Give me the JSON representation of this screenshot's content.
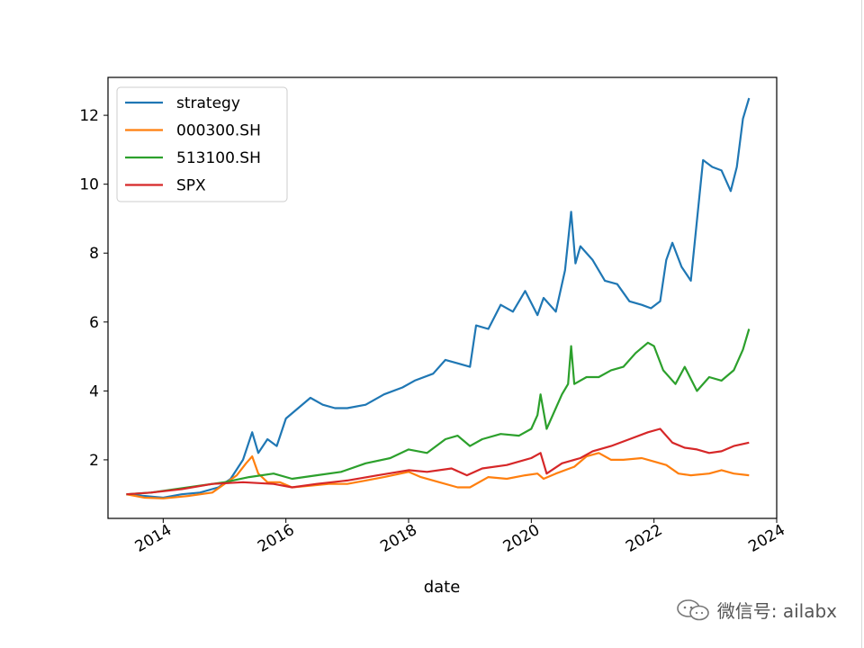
{
  "chart_data": {
    "type": "line",
    "title": "",
    "xlabel": "date",
    "ylabel": "",
    "xlim": [
      2013.1,
      2024.0
    ],
    "ylim": [
      0.3,
      13.1
    ],
    "x_ticks": [
      2014,
      2016,
      2018,
      2020,
      2022,
      2024
    ],
    "x_tick_labels": [
      "2014",
      "2016",
      "2018",
      "2020",
      "2022",
      "2024"
    ],
    "y_ticks": [
      2,
      4,
      6,
      8,
      10,
      12
    ],
    "y_tick_labels": [
      "2",
      "4",
      "6",
      "8",
      "10",
      "12"
    ],
    "grid": false,
    "legend_position": "top-left",
    "series": [
      {
        "name": "strategy",
        "color": "#1f77b4",
        "x": [
          2013.4,
          2013.7,
          2014.0,
          2014.3,
          2014.6,
          2014.9,
          2015.1,
          2015.3,
          2015.45,
          2015.55,
          2015.7,
          2015.85,
          2016.0,
          2016.2,
          2016.4,
          2016.6,
          2016.8,
          2017.0,
          2017.3,
          2017.6,
          2017.9,
          2018.1,
          2018.4,
          2018.6,
          2018.8,
          2019.0,
          2019.1,
          2019.3,
          2019.5,
          2019.7,
          2019.9,
          2020.1,
          2020.2,
          2020.4,
          2020.55,
          2020.65,
          2020.72,
          2020.8,
          2021.0,
          2021.2,
          2021.4,
          2021.6,
          2021.8,
          2021.95,
          2022.1,
          2022.2,
          2022.3,
          2022.45,
          2022.6,
          2022.8,
          2022.95,
          2023.1,
          2023.25,
          2023.35,
          2023.45,
          2023.55
        ],
        "y": [
          1.0,
          0.95,
          0.9,
          1.0,
          1.05,
          1.2,
          1.45,
          2.0,
          2.8,
          2.2,
          2.6,
          2.4,
          3.2,
          3.5,
          3.8,
          3.6,
          3.5,
          3.5,
          3.6,
          3.9,
          4.1,
          4.3,
          4.5,
          4.9,
          4.8,
          4.7,
          5.9,
          5.8,
          6.5,
          6.3,
          6.9,
          6.2,
          6.7,
          6.3,
          7.5,
          9.2,
          7.7,
          8.2,
          7.8,
          7.2,
          7.1,
          6.6,
          6.5,
          6.4,
          6.6,
          7.8,
          8.3,
          7.6,
          7.2,
          10.7,
          10.5,
          10.4,
          9.8,
          10.5,
          11.9,
          12.5
        ]
      },
      {
        "name": "000300.SH",
        "color": "#ff7f0e",
        "x": [
          2013.4,
          2013.7,
          2014.0,
          2014.4,
          2014.8,
          2015.0,
          2015.2,
          2015.35,
          2015.45,
          2015.55,
          2015.7,
          2015.9,
          2016.1,
          2016.4,
          2016.7,
          2017.0,
          2017.3,
          2017.6,
          2018.0,
          2018.2,
          2018.5,
          2018.8,
          2019.0,
          2019.3,
          2019.6,
          2019.9,
          2020.1,
          2020.2,
          2020.4,
          2020.7,
          2020.9,
          2021.1,
          2021.3,
          2021.5,
          2021.8,
          2022.0,
          2022.2,
          2022.4,
          2022.6,
          2022.9,
          2023.1,
          2023.3,
          2023.55
        ],
        "y": [
          1.0,
          0.9,
          0.88,
          0.95,
          1.05,
          1.3,
          1.55,
          1.9,
          2.1,
          1.6,
          1.35,
          1.35,
          1.2,
          1.25,
          1.3,
          1.3,
          1.4,
          1.5,
          1.65,
          1.5,
          1.35,
          1.2,
          1.2,
          1.5,
          1.45,
          1.55,
          1.6,
          1.45,
          1.6,
          1.8,
          2.1,
          2.2,
          2.0,
          2.0,
          2.05,
          1.95,
          1.85,
          1.6,
          1.55,
          1.6,
          1.7,
          1.6,
          1.55
        ]
      },
      {
        "name": "513100.SH",
        "color": "#2ca02c",
        "x": [
          2013.4,
          2013.8,
          2014.2,
          2014.6,
          2015.0,
          2015.4,
          2015.8,
          2016.1,
          2016.5,
          2016.9,
          2017.3,
          2017.7,
          2018.0,
          2018.3,
          2018.6,
          2018.8,
          2019.0,
          2019.2,
          2019.5,
          2019.8,
          2020.0,
          2020.1,
          2020.15,
          2020.25,
          2020.5,
          2020.6,
          2020.65,
          2020.7,
          2020.9,
          2021.1,
          2021.3,
          2021.5,
          2021.7,
          2021.9,
          2022.0,
          2022.15,
          2022.35,
          2022.5,
          2022.7,
          2022.9,
          2023.1,
          2023.3,
          2023.45,
          2023.55
        ],
        "y": [
          1.0,
          1.05,
          1.15,
          1.25,
          1.35,
          1.5,
          1.6,
          1.45,
          1.55,
          1.65,
          1.9,
          2.05,
          2.3,
          2.2,
          2.6,
          2.7,
          2.4,
          2.6,
          2.75,
          2.7,
          2.9,
          3.3,
          3.9,
          2.9,
          3.9,
          4.2,
          5.3,
          4.2,
          4.4,
          4.4,
          4.6,
          4.7,
          5.1,
          5.4,
          5.3,
          4.6,
          4.2,
          4.7,
          4.0,
          4.4,
          4.3,
          4.6,
          5.2,
          5.8
        ]
      },
      {
        "name": "SPX",
        "color": "#d62728",
        "x": [
          2013.4,
          2013.8,
          2014.3,
          2014.8,
          2015.3,
          2015.8,
          2016.1,
          2016.5,
          2017.0,
          2017.5,
          2018.0,
          2018.3,
          2018.7,
          2018.95,
          2019.2,
          2019.6,
          2020.0,
          2020.15,
          2020.25,
          2020.5,
          2020.8,
          2021.0,
          2021.3,
          2021.6,
          2021.9,
          2022.1,
          2022.3,
          2022.5,
          2022.7,
          2022.9,
          2023.1,
          2023.3,
          2023.55
        ],
        "y": [
          1.0,
          1.05,
          1.15,
          1.3,
          1.35,
          1.3,
          1.2,
          1.3,
          1.4,
          1.55,
          1.7,
          1.65,
          1.75,
          1.55,
          1.75,
          1.85,
          2.05,
          2.2,
          1.6,
          1.9,
          2.05,
          2.25,
          2.4,
          2.6,
          2.8,
          2.9,
          2.5,
          2.35,
          2.3,
          2.2,
          2.25,
          2.4,
          2.5
        ]
      }
    ]
  },
  "watermark": {
    "text": "微信号: ailabx",
    "icon": "wechat-icon"
  }
}
